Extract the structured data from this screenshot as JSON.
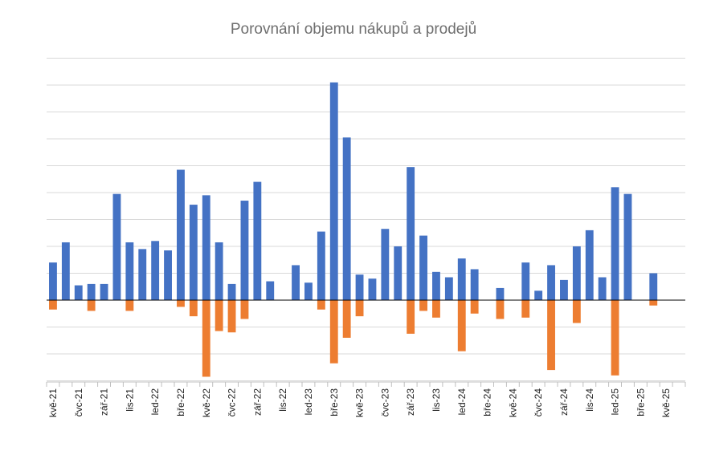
{
  "chart_data": {
    "type": "bar",
    "title": "Porovnání objemu nákupů a prodejů",
    "xlabel": "",
    "ylabel": "",
    "grid": true,
    "ylim": [
      -3.1,
      9.1
    ],
    "categories": [
      "kvě-21",
      "čer-21",
      "čvc-21",
      "srp-21",
      "zář-21",
      "říj-21",
      "lis-21",
      "pro-21",
      "led-22",
      "úno-22",
      "bře-22",
      "dub-22",
      "kvě-22",
      "čer-22",
      "čvc-22",
      "srp-22",
      "zář-22",
      "říj-22",
      "lis-22",
      "pro-22",
      "led-23",
      "úno-23",
      "bře-23",
      "dub-23",
      "kvě-23",
      "čer-23",
      "čvc-23",
      "srp-23",
      "zář-23",
      "říj-23",
      "lis-23",
      "pro-23",
      "led-24",
      "úno-24",
      "bře-24",
      "dub-24",
      "kvě-24",
      "čer-24",
      "čvc-24",
      "srp-24",
      "zář-24",
      "říj-24",
      "lis-24",
      "pro-24",
      "led-25",
      "úno-25",
      "bře-25",
      "dub-25",
      "kvě-25",
      "čer-25"
    ],
    "tick_labels_shown": [
      "kvě-21",
      "čvc-21",
      "zář-21",
      "lis-21",
      "led-22",
      "bře-22",
      "kvě-22",
      "čvc-22",
      "zář-22",
      "lis-22",
      "led-23",
      "bře-23",
      "kvě-23",
      "čvc-23",
      "zář-23",
      "lis-23",
      "led-24",
      "bře-24",
      "kvě-24",
      "čvc-24",
      "zář-24",
      "lis-24",
      "led-25",
      "bře-25",
      "kvě-25"
    ],
    "series": [
      {
        "color": "#4472c4",
        "values": [
          1.4,
          2.15,
          0.55,
          0.6,
          0.6,
          3.95,
          2.15,
          1.9,
          2.2,
          1.85,
          4.85,
          3.55,
          3.9,
          2.15,
          0.6,
          3.7,
          4.4,
          0.7,
          0,
          1.3,
          0.65,
          2.55,
          8.1,
          6.05,
          0.95,
          0.8,
          2.65,
          2.0,
          4.95,
          2.4,
          1.05,
          0.85,
          1.55,
          1.15,
          0,
          0.45,
          0,
          1.4,
          0.35,
          1.3,
          0.75,
          2.0,
          2.6,
          0.85,
          4.2,
          3.95,
          0,
          1.0,
          0,
          0
        ]
      },
      {
        "color": "#ed7d31",
        "values": [
          -0.35,
          0,
          0,
          -0.4,
          0,
          0,
          -0.4,
          0,
          0,
          0,
          -0.25,
          -0.6,
          -2.85,
          -1.15,
          -1.2,
          -0.7,
          0,
          0,
          0,
          0,
          0,
          -0.35,
          -2.35,
          -1.4,
          -0.6,
          0,
          0,
          0,
          -1.25,
          -0.4,
          -0.65,
          0,
          -1.9,
          -0.5,
          0,
          -0.7,
          0,
          -0.65,
          0,
          -2.6,
          0,
          -0.85,
          0,
          0,
          -2.8,
          0,
          0,
          -0.2,
          0,
          0
        ]
      }
    ]
  }
}
